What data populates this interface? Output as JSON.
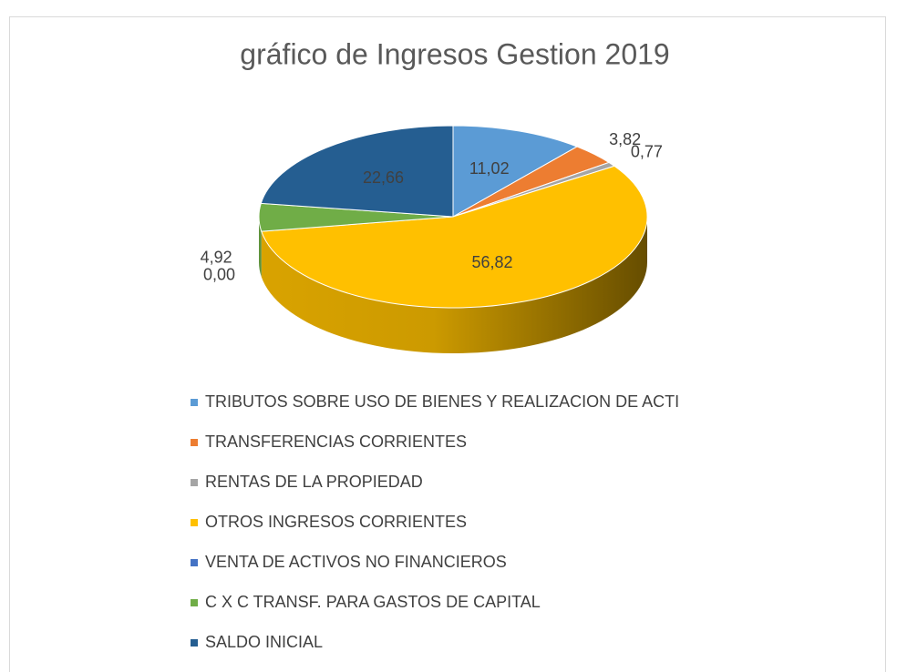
{
  "chart_data": {
    "type": "pie3d",
    "title": "gráfico de Ingresos Gestion 2019",
    "series": [
      {
        "name": "TRIBUTOS SOBRE USO DE BIENES Y REALIZACION DE ACTI",
        "color": "#5b9bd5",
        "values": [
          11.02
        ],
        "value_labels": [
          "11,02"
        ]
      },
      {
        "name": "TRANSFERENCIAS CORRIENTES",
        "color": "#ed7d31",
        "values": [
          3.82
        ],
        "value_labels": [
          "3,82"
        ]
      },
      {
        "name": "RENTAS DE LA PROPIEDAD",
        "color": "#a5a5a5",
        "values": [
          0.77
        ],
        "value_labels": [
          "0,77"
        ]
      },
      {
        "name": "OTROS INGRESOS CORRIENTES",
        "color": "#ffc000",
        "values": [
          56.82
        ],
        "value_labels": [
          "56,82"
        ]
      },
      {
        "name": "VENTA DE ACTIVOS NO FINANCIEROS",
        "color": "#4472c4",
        "values": [
          0.0
        ],
        "value_labels": [
          "0,00"
        ]
      },
      {
        "name": "C X C  TRANSF. PARA GASTOS DE CAPITAL",
        "color": "#70ad47",
        "values": [
          4.92
        ],
        "value_labels": [
          "4,92"
        ]
      },
      {
        "name": "SALDO INICIAL",
        "color": "#255e91",
        "values": [
          22.66
        ],
        "value_labels": [
          "22,66"
        ]
      }
    ],
    "legend": "bottom"
  }
}
